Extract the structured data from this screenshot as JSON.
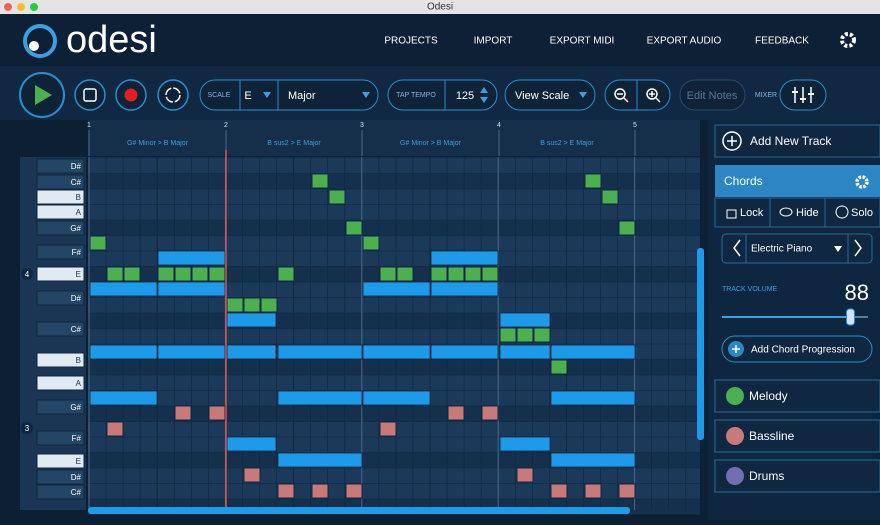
{
  "window": {
    "title": "Odesi"
  },
  "header": {
    "logo": "odesi",
    "nav": [
      "PROJECTS",
      "IMPORT",
      "EXPORT MIDI",
      "EXPORT AUDIO",
      "FEEDBACK"
    ]
  },
  "toolbar": {
    "scale_label": "SCALE",
    "key": "E",
    "mode": "Major",
    "tap_tempo_label": "TAP TEMPO",
    "tempo": 125,
    "view_scale": "View Scale",
    "edit_notes": "Edit Notes",
    "mixer_label": "MIXER"
  },
  "timeline": {
    "bars": [
      1,
      2,
      3,
      4,
      5
    ],
    "chords": [
      "G# Minor > B Major",
      "B sus2 > E Major",
      "G# Minor > B Major",
      "B sus2 > E Major"
    ]
  },
  "keys": {
    "notes": [
      "D#",
      "C#",
      "B",
      "A",
      "G#",
      "F#",
      "E",
      "D#",
      "C#",
      "B",
      "A",
      "G#",
      "F#",
      "E",
      "D#",
      "C#"
    ],
    "octaves": [
      4,
      3
    ]
  },
  "panel": {
    "add_track": "Add New Track",
    "track": "Chords",
    "lock": "Lock",
    "hide": "Hide",
    "solo": "Solo",
    "instrument": "Electric Piano",
    "volume_label": "TRACK VOLUME",
    "volume": 88,
    "add_progression": "Add Chord Progression",
    "tracks": [
      "Melody",
      "Bassline",
      "Drums"
    ]
  }
}
